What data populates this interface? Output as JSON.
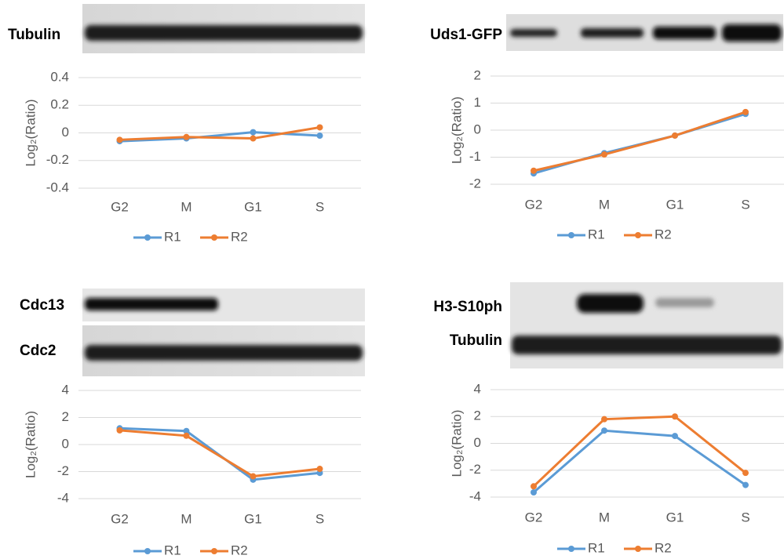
{
  "chart_data": [
    {
      "type": "line",
      "blot_labels": [
        "Tubulin"
      ],
      "y_label": "Log₂(Ratio)",
      "categories": [
        "G2",
        "M",
        "G1",
        "S"
      ],
      "ylim": [
        -0.4,
        0.4
      ],
      "yticks": [
        -0.4,
        -0.2,
        0,
        0.2,
        0.4
      ],
      "grid": true,
      "legend": "bottom",
      "series": [
        {
          "name": "R1",
          "color": "#5b9bd5",
          "values": [
            -0.06,
            -0.04,
            0.005,
            -0.02
          ]
        },
        {
          "name": "R2",
          "color": "#ed7d31",
          "values": [
            -0.05,
            -0.03,
            -0.04,
            0.04
          ]
        }
      ]
    },
    {
      "type": "line",
      "blot_labels": [
        "Uds1-GFP"
      ],
      "y_label": "Log₂(Ratio)",
      "categories": [
        "G2",
        "M",
        "G1",
        "S"
      ],
      "ylim": [
        -2,
        2
      ],
      "yticks": [
        -2,
        -1,
        0,
        1,
        2
      ],
      "grid": true,
      "legend": "bottom",
      "series": [
        {
          "name": "R1",
          "color": "#5b9bd5",
          "values": [
            -1.6,
            -0.85,
            -0.2,
            0.6
          ]
        },
        {
          "name": "R2",
          "color": "#ed7d31",
          "values": [
            -1.5,
            -0.9,
            -0.2,
            0.67
          ]
        }
      ]
    },
    {
      "type": "line",
      "blot_labels": [
        "Cdc13",
        "Cdc2"
      ],
      "y_label": "Log₂(Ratio)",
      "categories": [
        "G2",
        "M",
        "G1",
        "S"
      ],
      "ylim": [
        -4,
        4
      ],
      "yticks": [
        -4,
        -2,
        0,
        2,
        4
      ],
      "grid": true,
      "legend": "bottom",
      "series": [
        {
          "name": "R1",
          "color": "#5b9bd5",
          "values": [
            1.2,
            1.0,
            -2.6,
            -2.1
          ]
        },
        {
          "name": "R2",
          "color": "#ed7d31",
          "values": [
            1.05,
            0.65,
            -2.35,
            -1.8
          ]
        }
      ]
    },
    {
      "type": "line",
      "blot_labels": [
        "H3-S10ph",
        "Tubulin"
      ],
      "y_label": "Log₂(Ratio)",
      "categories": [
        "G2",
        "M",
        "G1",
        "S"
      ],
      "ylim": [
        -4,
        4
      ],
      "yticks": [
        -4,
        -2,
        0,
        2,
        4
      ],
      "grid": true,
      "legend": "bottom",
      "series": [
        {
          "name": "R1",
          "color": "#5b9bd5",
          "values": [
            -3.65,
            0.95,
            0.55,
            -3.1
          ]
        },
        {
          "name": "R2",
          "color": "#ed7d31",
          "values": [
            -3.2,
            1.8,
            2.0,
            -2.2
          ]
        }
      ]
    }
  ]
}
